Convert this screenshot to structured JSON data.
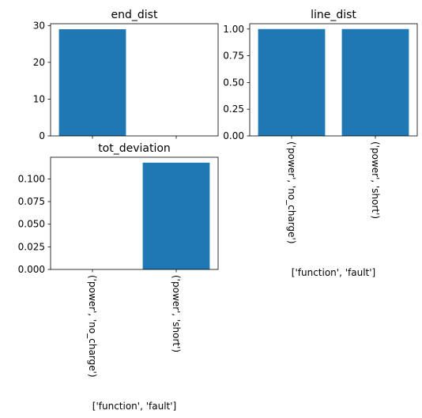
{
  "chart_data": [
    {
      "type": "bar",
      "title": "end_dist",
      "categories": [
        "('power', 'no_charge')",
        "('power', 'short')"
      ],
      "values": [
        29,
        0
      ],
      "ylim": [
        0,
        30.5
      ],
      "yticks": [
        "0",
        "10",
        "20",
        "30"
      ],
      "ytick_values": [
        0,
        10,
        20,
        30
      ],
      "xlabel": "",
      "show_xticklabels": false,
      "bar_color": "#1f77b4"
    },
    {
      "type": "bar",
      "title": "line_dist",
      "categories": [
        "('power', 'no_charge')",
        "('power', 'short')"
      ],
      "values": [
        1.0,
        1.0
      ],
      "ylim": [
        0,
        1.05
      ],
      "yticks": [
        "0.00",
        "0.25",
        "0.50",
        "0.75",
        "1.00"
      ],
      "ytick_values": [
        0,
        0.25,
        0.5,
        0.75,
        1.0
      ],
      "xlabel": "['function', 'fault']",
      "show_xticklabels": true,
      "bar_color": "#1f77b4"
    },
    {
      "type": "bar",
      "title": "tot_deviation",
      "categories": [
        "('power', 'no_charge')",
        "('power', 'short')"
      ],
      "values": [
        0,
        0.118
      ],
      "ylim": [
        0,
        0.124
      ],
      "yticks": [
        "0.000",
        "0.025",
        "0.050",
        "0.075",
        "0.100"
      ],
      "ytick_values": [
        0,
        0.025,
        0.05,
        0.075,
        0.1
      ],
      "xlabel": "['function', 'fault']",
      "show_xticklabels": true,
      "bar_color": "#1f77b4"
    }
  ]
}
